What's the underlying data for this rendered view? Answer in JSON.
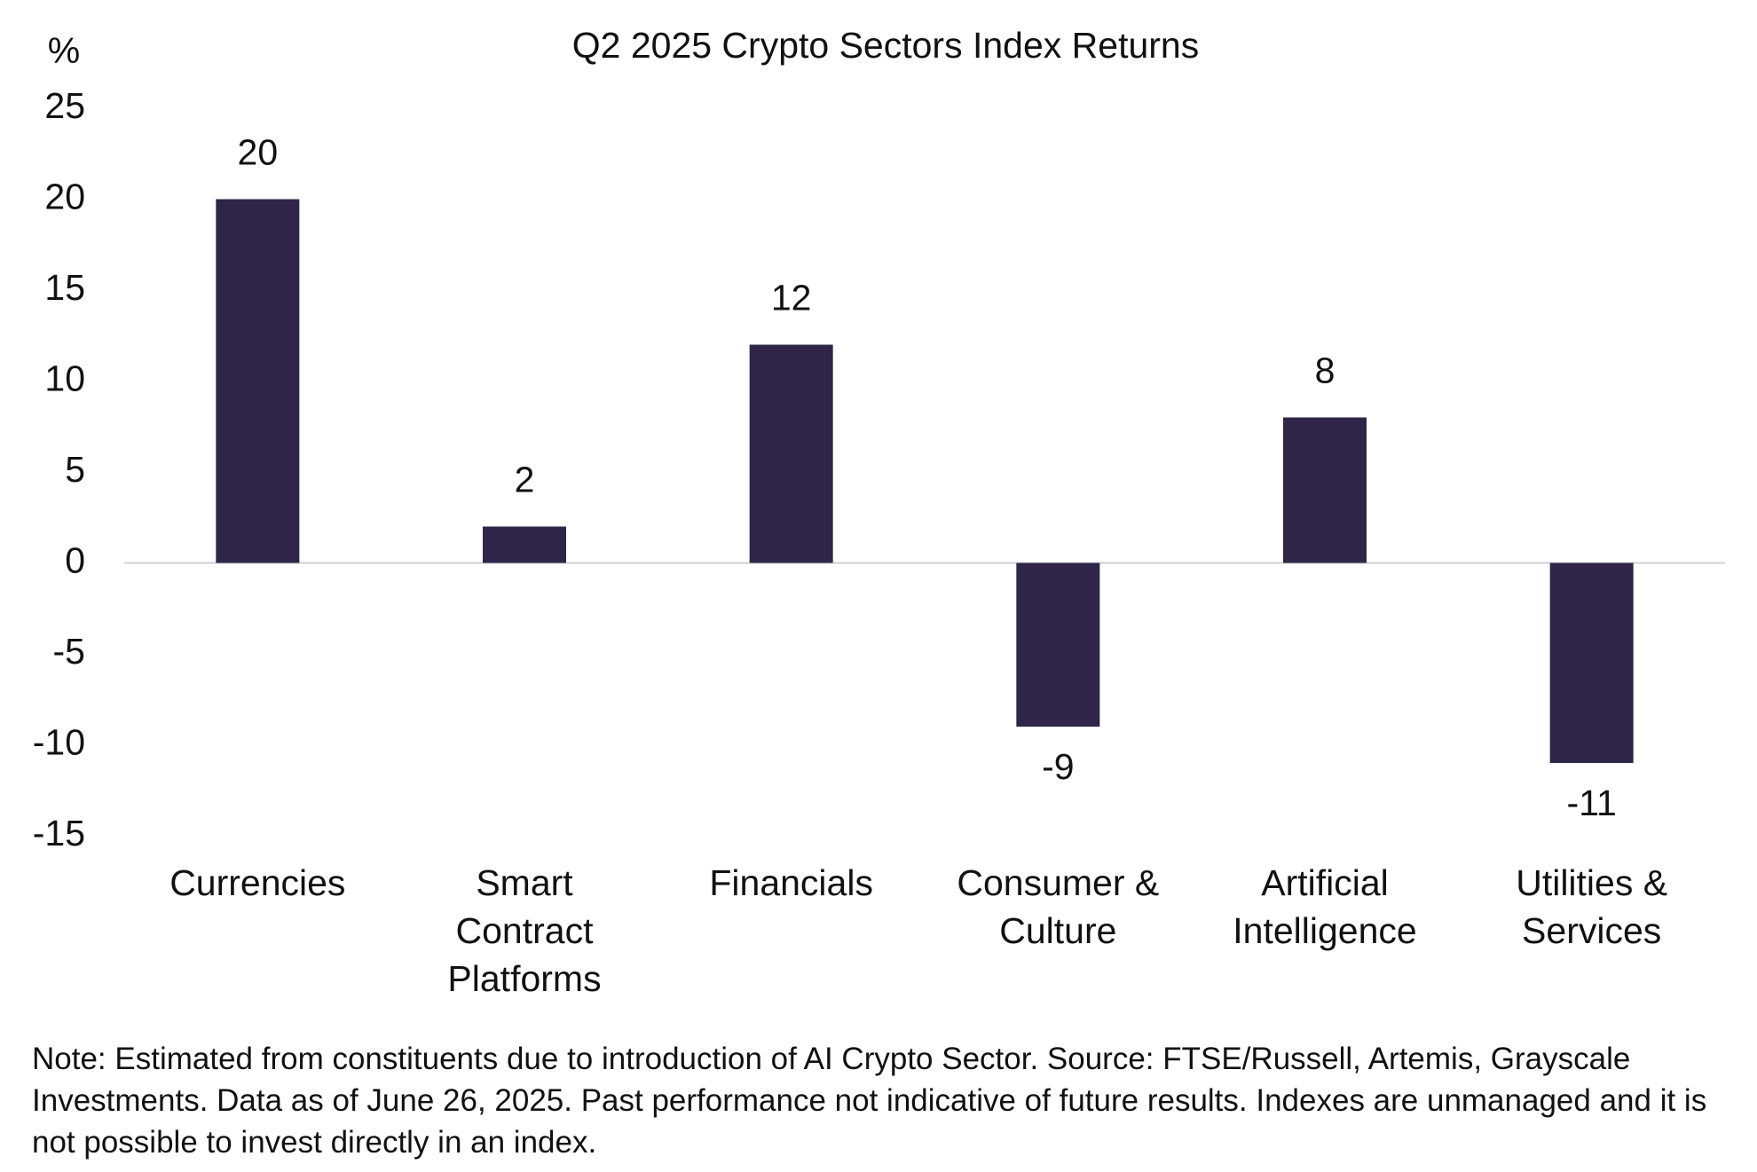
{
  "chart_data": {
    "type": "bar",
    "title": "Q2 2025 Crypto Sectors Index Returns",
    "y_label": "%",
    "categories": [
      "Currencies",
      "Smart Contract Platforms",
      "Financials",
      "Consumer & Culture",
      "Artificial Intelligence",
      "Utilities & Services"
    ],
    "values": [
      20,
      2,
      12,
      -9,
      8,
      -11
    ],
    "color": "#2e2548",
    "ylim": [
      -15,
      25
    ],
    "yticks": [
      -15,
      -10,
      -5,
      0,
      5,
      10,
      15,
      20,
      25
    ],
    "grid": false,
    "note": "Note: Estimated from constituents due to introduction of AI Crypto Sector. Source: FTSE/Russell, Artemis, Grayscale Investments. Data as of June 26, 2025. Past performance not indicative of future results. Indexes are unmanaged and it is not possible to invest directly in an index."
  }
}
